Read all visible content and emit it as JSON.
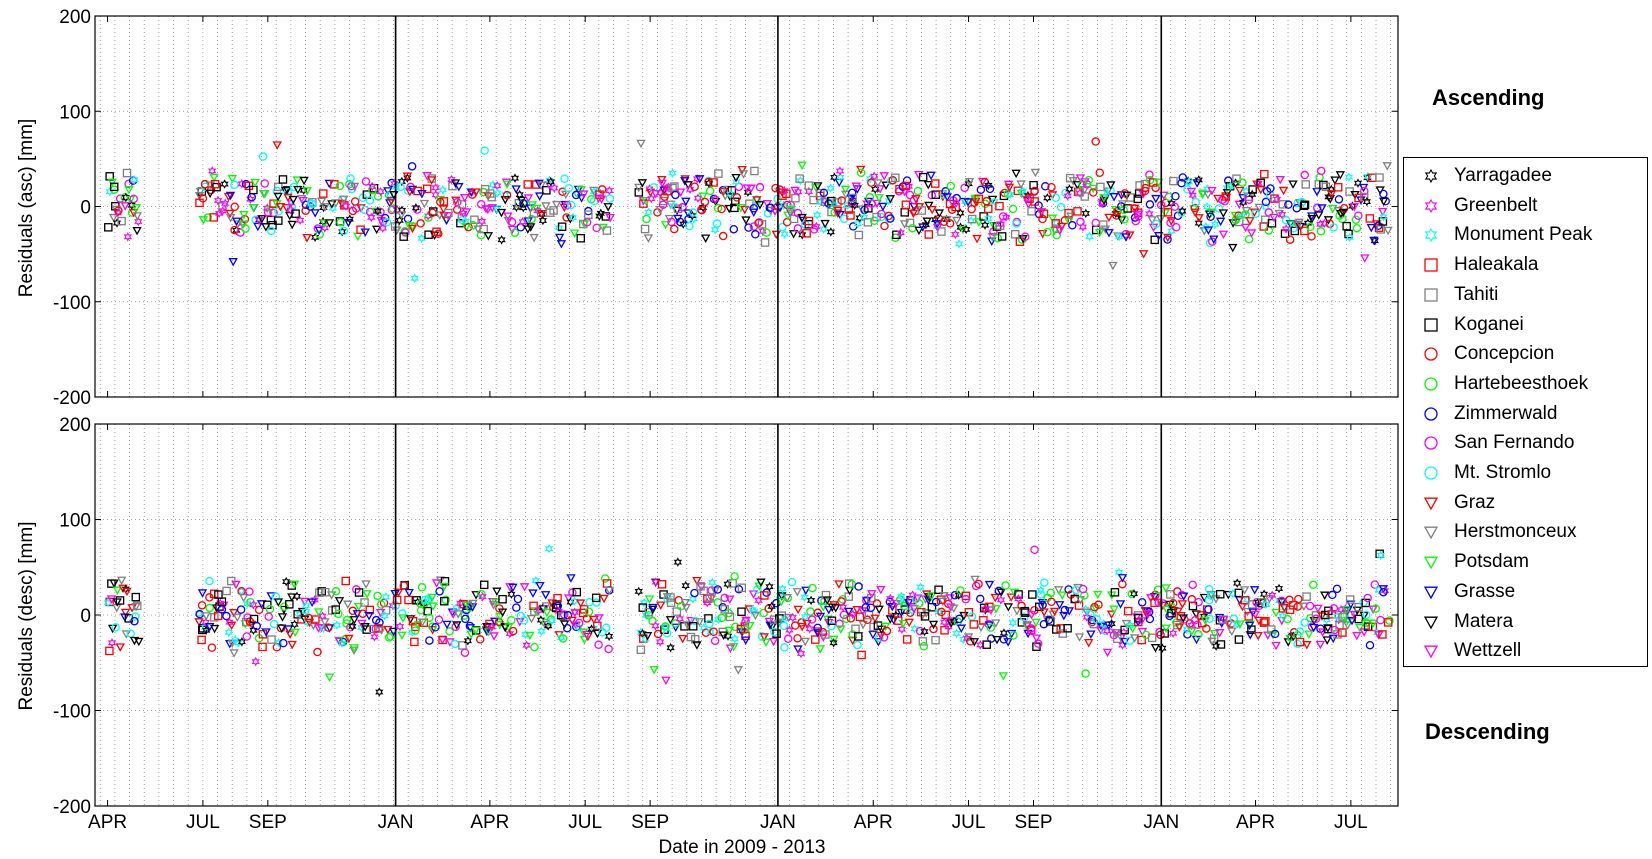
{
  "chart_data": [
    {
      "type": "scatter",
      "panel": "ascending",
      "title": "",
      "panel_label": "Ascending",
      "xlabel": "",
      "ylabel": "Residuals (asc) [mm]",
      "ylim": [
        -200,
        200
      ],
      "yticks": [
        200,
        100,
        0,
        -100,
        -200
      ],
      "xlim": [
        "2010-03-20",
        "2013-08-15"
      ],
      "grid": true,
      "year_boundaries": [
        "2011-01-01",
        "2012-01-01",
        "2013-01-01"
      ]
    },
    {
      "type": "scatter",
      "panel": "descending",
      "title": "",
      "panel_label": "Descending",
      "xlabel": "Date in 2009 - 2013",
      "ylabel": "Residuals (desc) [mm]",
      "ylim": [
        -200,
        200
      ],
      "yticks": [
        200,
        100,
        0,
        -100,
        -200
      ],
      "xlim": [
        "2010-03-20",
        "2013-08-15"
      ],
      "grid": true,
      "year_boundaries": [
        "2011-01-01",
        "2012-01-01",
        "2013-01-01"
      ],
      "xticks": [
        {
          "date": "2010-04-01",
          "label": "APR"
        },
        {
          "date": "2010-07-01",
          "label": "JUL"
        },
        {
          "date": "2010-09-01",
          "label": "SEP"
        },
        {
          "date": "2011-01-01",
          "label": "JAN"
        },
        {
          "date": "2011-04-01",
          "label": "APR"
        },
        {
          "date": "2011-07-01",
          "label": "JUL"
        },
        {
          "date": "2011-09-01",
          "label": "SEP"
        },
        {
          "date": "2012-01-01",
          "label": "JAN"
        },
        {
          "date": "2012-04-01",
          "label": "APR"
        },
        {
          "date": "2012-07-01",
          "label": "JUL"
        },
        {
          "date": "2012-09-01",
          "label": "SEP"
        },
        {
          "date": "2013-01-01",
          "label": "JAN"
        },
        {
          "date": "2013-04-01",
          "label": "APR"
        },
        {
          "date": "2013-07-01",
          "label": "JUL"
        }
      ]
    }
  ],
  "legend": {
    "placement": "right",
    "entries": [
      {
        "name": "Yarragadee",
        "color": "#000000",
        "marker": "hexagram"
      },
      {
        "name": "Greenbelt",
        "color": "#ff00ff",
        "marker": "hexagram"
      },
      {
        "name": "Monument Peak",
        "color": "#00ffff",
        "marker": "hexagram"
      },
      {
        "name": "Haleakala",
        "color": "#ff0000",
        "marker": "square"
      },
      {
        "name": "Tahiti",
        "color": "#808080",
        "marker": "square"
      },
      {
        "name": "Koganei",
        "color": "#000000",
        "marker": "square"
      },
      {
        "name": "Concepcion",
        "color": "#ff0000",
        "marker": "circle"
      },
      {
        "name": "Hartebeesthoek",
        "color": "#00ff00",
        "marker": "circle"
      },
      {
        "name": "Zimmerwald",
        "color": "#0000ff",
        "marker": "circle"
      },
      {
        "name": "San Fernando",
        "color": "#ff00ff",
        "marker": "circle"
      },
      {
        "name": "Mt. Stromlo",
        "color": "#00ffff",
        "marker": "circle"
      },
      {
        "name": "Graz",
        "color": "#ff0000",
        "marker": "triangle-down"
      },
      {
        "name": "Herstmonceux",
        "color": "#808080",
        "marker": "triangle-down"
      },
      {
        "name": "Potsdam",
        "color": "#00ff00",
        "marker": "triangle-down"
      },
      {
        "name": "Grasse",
        "color": "#0000ff",
        "marker": "triangle-down"
      },
      {
        "name": "Matera",
        "color": "#000000",
        "marker": "triangle-down"
      },
      {
        "name": "Wettzell",
        "color": "#ff00ff",
        "marker": "triangle-down"
      }
    ]
  }
}
